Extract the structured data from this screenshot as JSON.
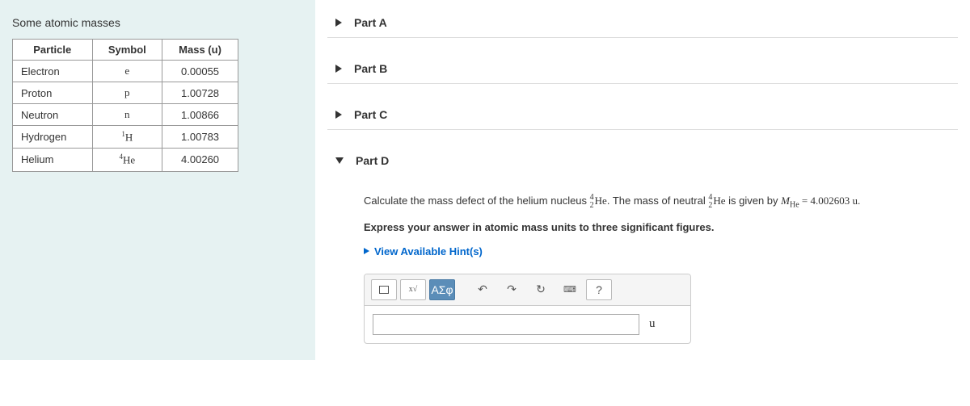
{
  "left": {
    "title": "Some atomic masses",
    "columns": [
      "Particle",
      "Symbol",
      "Mass (u)"
    ],
    "rows": [
      {
        "particle": "Electron",
        "symbol": "e",
        "mass": "0.00055",
        "sup": ""
      },
      {
        "particle": "Proton",
        "symbol": "p",
        "mass": "1.00728",
        "sup": ""
      },
      {
        "particle": "Neutron",
        "symbol": "n",
        "mass": "1.00866",
        "sup": ""
      },
      {
        "particle": "Hydrogen",
        "symbol": "H",
        "mass": "1.00783",
        "sup": "1"
      },
      {
        "particle": "Helium",
        "symbol": "He",
        "mass": "4.00260",
        "sup": "4"
      }
    ]
  },
  "parts": {
    "a": {
      "label": "Part A",
      "open": false
    },
    "b": {
      "label": "Part B",
      "open": false
    },
    "c": {
      "label": "Part C",
      "open": false
    },
    "d": {
      "label": "Part D",
      "open": true
    }
  },
  "partD": {
    "q1": "Calculate the mass defect of the helium nucleus ",
    "nuc_top": "4",
    "nuc_bot": "2",
    "nuc": "He",
    "q2": ". The mass of neutral ",
    "q3": " is given by ",
    "mvar": "M",
    "msub": "He",
    "eq": " = 4.002603 u.",
    "instruct": "Express your answer in atomic mass units to three significant figures.",
    "hints": "View Available Hint(s)",
    "greek": "ΑΣφ",
    "help": "?",
    "unit": "u"
  }
}
